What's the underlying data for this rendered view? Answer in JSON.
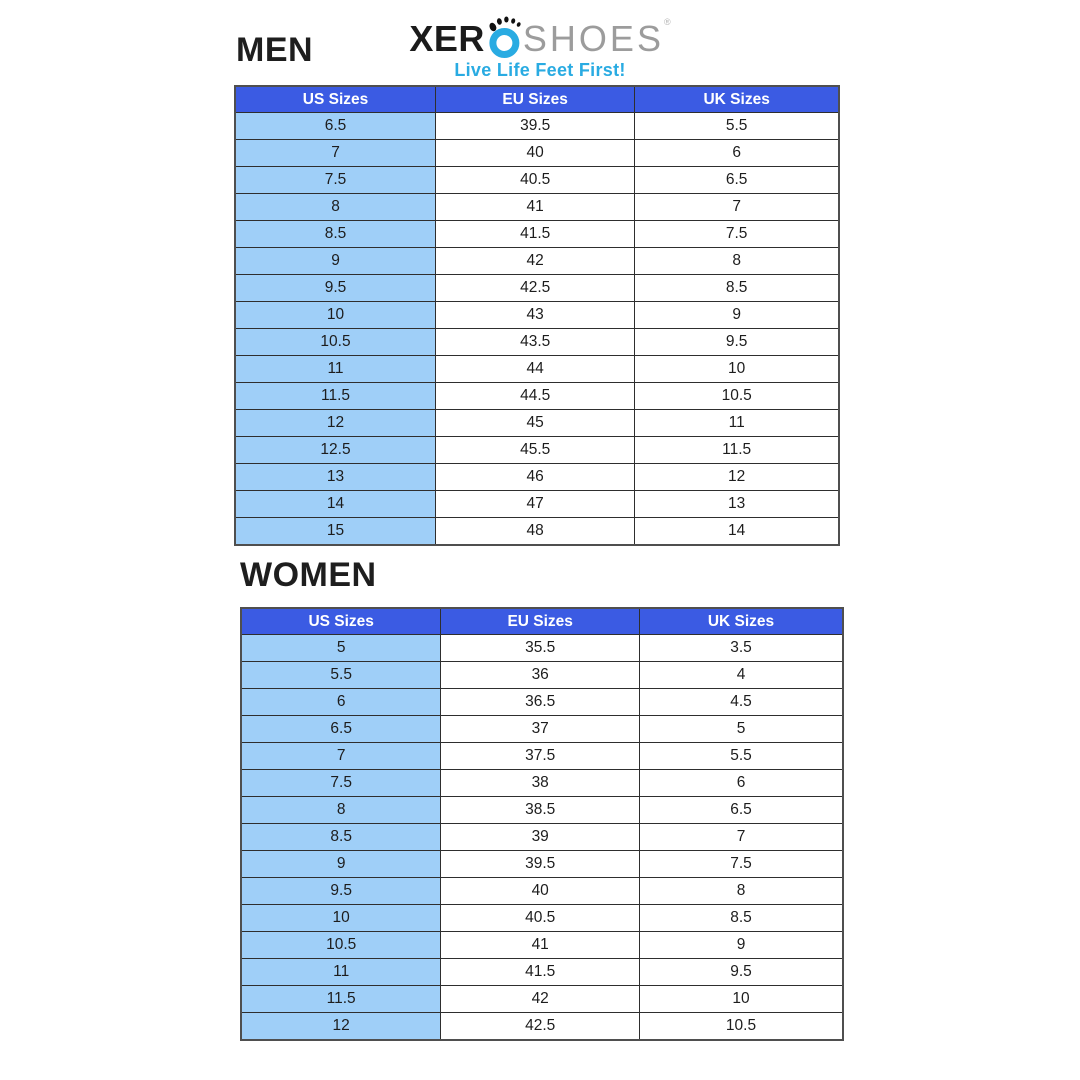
{
  "logo": {
    "brand_first": "XER",
    "brand_o": "O",
    "brand_rest": "SHOES",
    "registered": "®",
    "tagline": "Live Life Feet First!",
    "colors": {
      "brand_black": "#1b1b1b",
      "brand_gray": "#9c9c9c",
      "brand_blue": "#29ABE2"
    }
  },
  "colors": {
    "header_bg": "#3B5BE3",
    "header_text": "#ffffff",
    "us_column_bg": "#9FCFF8",
    "cell_bg": "#ffffff",
    "border": "#2e2e2e",
    "text": "#1d1d1d"
  },
  "men": {
    "title": "MEN",
    "columns": [
      "US Sizes",
      "EU Sizes",
      "UK Sizes"
    ],
    "rows": [
      [
        "6.5",
        "39.5",
        "5.5"
      ],
      [
        "7",
        "40",
        "6"
      ],
      [
        "7.5",
        "40.5",
        "6.5"
      ],
      [
        "8",
        "41",
        "7"
      ],
      [
        "8.5",
        "41.5",
        "7.5"
      ],
      [
        "9",
        "42",
        "8"
      ],
      [
        "9.5",
        "42.5",
        "8.5"
      ],
      [
        "10",
        "43",
        "9"
      ],
      [
        "10.5",
        "43.5",
        "9.5"
      ],
      [
        "11",
        "44",
        "10"
      ],
      [
        "11.5",
        "44.5",
        "10.5"
      ],
      [
        "12",
        "45",
        "11"
      ],
      [
        "12.5",
        "45.5",
        "11.5"
      ],
      [
        "13",
        "46",
        "12"
      ],
      [
        "14",
        "47",
        "13"
      ],
      [
        "15",
        "48",
        "14"
      ]
    ]
  },
  "women": {
    "title": "WOMEN",
    "columns": [
      "US Sizes",
      "EU Sizes",
      "UK Sizes"
    ],
    "rows": [
      [
        "5",
        "35.5",
        "3.5"
      ],
      [
        "5.5",
        "36",
        "4"
      ],
      [
        "6",
        "36.5",
        "4.5"
      ],
      [
        "6.5",
        "37",
        "5"
      ],
      [
        "7",
        "37.5",
        "5.5"
      ],
      [
        "7.5",
        "38",
        "6"
      ],
      [
        "8",
        "38.5",
        "6.5"
      ],
      [
        "8.5",
        "39",
        "7"
      ],
      [
        "9",
        "39.5",
        "7.5"
      ],
      [
        "9.5",
        "40",
        "8"
      ],
      [
        "10",
        "40.5",
        "8.5"
      ],
      [
        "10.5",
        "41",
        "9"
      ],
      [
        "11",
        "41.5",
        "9.5"
      ],
      [
        "11.5",
        "42",
        "10"
      ],
      [
        "12",
        "42.5",
        "10.5"
      ]
    ]
  }
}
